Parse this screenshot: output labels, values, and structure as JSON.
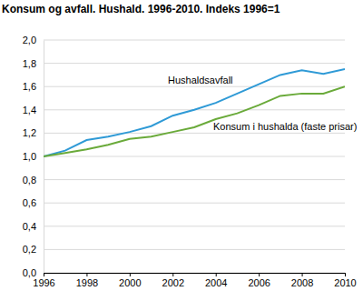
{
  "chart_data": {
    "type": "line",
    "title": "Konsum og avfall. Hushald. 1996-2010. Indeks 1996=1",
    "x": [
      1996,
      1997,
      1998,
      1999,
      2000,
      2001,
      2002,
      2003,
      2004,
      2005,
      2006,
      2007,
      2008,
      2009,
      2010
    ],
    "series": [
      {
        "name": "Hushaldsavfall",
        "color": "#2f9ad6",
        "values": [
          1.0,
          1.05,
          1.14,
          1.17,
          1.21,
          1.26,
          1.35,
          1.4,
          1.46,
          1.54,
          1.62,
          1.7,
          1.74,
          1.71,
          1.75
        ]
      },
      {
        "name": "Konsum i hushalda (faste prisar)",
        "color": "#6aaa3a",
        "values": [
          1.0,
          1.03,
          1.06,
          1.1,
          1.15,
          1.17,
          1.21,
          1.25,
          1.32,
          1.37,
          1.44,
          1.52,
          1.54,
          1.54,
          1.6
        ]
      }
    ],
    "xlim": [
      1996,
      2010
    ],
    "xticks": [
      1996,
      1998,
      2000,
      2002,
      2004,
      2006,
      2008,
      2010
    ],
    "ylim": [
      0,
      2
    ],
    "yticks": [
      {
        "value": 0,
        "label": "0,0"
      },
      {
        "value": 0.2,
        "label": "0,2"
      },
      {
        "value": 0.4,
        "label": "0,4"
      },
      {
        "value": 0.6,
        "label": "0,6"
      },
      {
        "value": 0.8,
        "label": "0,8"
      },
      {
        "value": 1.0,
        "label": "1,0"
      },
      {
        "value": 1.2,
        "label": "1,2"
      },
      {
        "value": 1.4,
        "label": "1,4"
      },
      {
        "value": 1.6,
        "label": "1,6"
      },
      {
        "value": 1.8,
        "label": "1,8"
      },
      {
        "value": 2.0,
        "label": "2,0"
      }
    ],
    "grid": true
  }
}
